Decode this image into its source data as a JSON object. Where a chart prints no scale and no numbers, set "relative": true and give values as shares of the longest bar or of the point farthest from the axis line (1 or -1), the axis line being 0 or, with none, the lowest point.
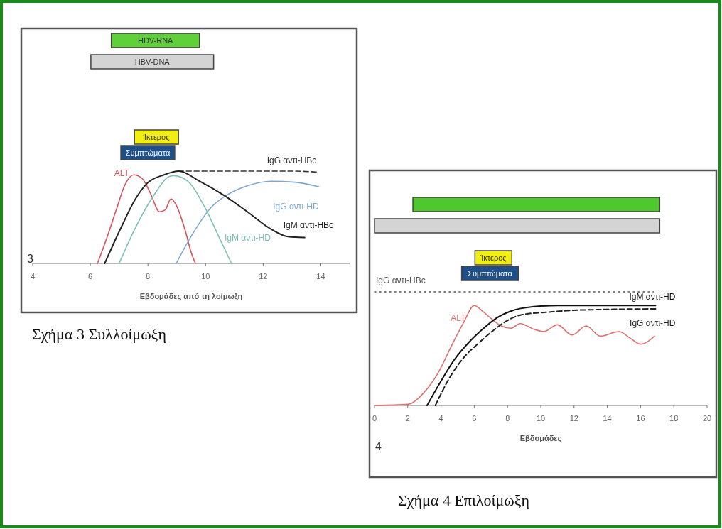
{
  "chart_data": [
    {
      "type": "line",
      "title": "Σχήμα 3  Συλλοίμωξη",
      "xlabel": "Εβδομάδες από τη λοίμωξη",
      "relative": true,
      "tick_labels": "x",
      "xlim": [
        4,
        15
      ],
      "xticks": [
        4,
        6,
        8,
        10,
        12,
        14
      ],
      "annotations": [
        "HDV-RNA",
        "HBV-DNA",
        "Ίκτερος",
        "Συμπτώματα",
        "3"
      ],
      "series": [
        {
          "name": "ALT",
          "color": "#e0505a",
          "line_style": "solid",
          "x": [
            6.25,
            6.6,
            6.9,
            7.2,
            7.5,
            7.8,
            8.1,
            8.4,
            8.6,
            8.8,
            9.0,
            9.3,
            9.5,
            9.65
          ],
          "values": [
            0,
            0.3,
            0.58,
            0.85,
            0.96,
            0.92,
            0.75,
            0.56,
            0.58,
            0.7,
            0.62,
            0.35,
            0.12,
            0
          ]
        },
        {
          "name": "IgG αντι-HBc",
          "color": "#333333",
          "line_style": "dashed",
          "x": [
            9.06,
            10,
            11,
            12,
            13,
            13.85
          ],
          "values": [
            1,
            1,
            1,
            1,
            1,
            0.99
          ]
        },
        {
          "name": "IgG αντι-HD",
          "color": "#7fa8d0",
          "line_style": "solid",
          "x": [
            8.98,
            9.55,
            10.2,
            10.79,
            11.45,
            12.28,
            13.1,
            13.93
          ],
          "values": [
            0,
            0.32,
            0.61,
            0.75,
            0.84,
            0.89,
            0.88,
            0.83
          ]
        },
        {
          "name": "IgM αντι-HBc",
          "color": "#222222",
          "line_style": "solid",
          "x": [
            6.5,
            7.07,
            7.57,
            7.98,
            8.56,
            9.06,
            9.8,
            10.63,
            11.45,
            12.28,
            12.86,
            13.44
          ],
          "values": [
            0,
            0.39,
            0.7,
            0.87,
            0.96,
            1,
            0.89,
            0.74,
            0.56,
            0.37,
            0.29,
            0.28
          ]
        },
        {
          "name": "IgM αντι-HD",
          "color": "#7cc0b8",
          "line_style": "solid",
          "x": [
            7.0,
            7.57,
            8.23,
            8.73,
            8.9,
            9.39,
            9.97,
            10.46,
            10.9
          ],
          "values": [
            0,
            0.39,
            0.75,
            0.94,
            0.95,
            0.89,
            0.61,
            0.29,
            0
          ]
        }
      ]
    },
    {
      "type": "line",
      "title": "Σχήμα 4    Επιλοίμωξη",
      "xlabel": "Εβδομάδες",
      "relative": true,
      "tick_labels": "x",
      "xlim": [
        0,
        20
      ],
      "xticks": [
        0,
        2,
        4,
        6,
        8,
        10,
        12,
        14,
        16,
        18,
        20
      ],
      "annotations": [
        "Ίκτερος",
        "Συμπτώματα",
        "4"
      ],
      "series": [
        {
          "name": "IgG αντι-HBc",
          "color": "#555555",
          "line_style": "dotted",
          "x": [
            0,
            16.8
          ],
          "values": [
            1,
            1
          ]
        },
        {
          "name": "ALT",
          "color": "#e07070",
          "line_style": "solid",
          "x": [
            0,
            2,
            2.95,
            3.8,
            4.65,
            5.36,
            6.0,
            6.49,
            7.06,
            7.63,
            8.2,
            8.76,
            9.6,
            10.18,
            11.0,
            11.88,
            12.73,
            13.58,
            14.7,
            15.4,
            16.0,
            16.84
          ],
          "values": [
            0,
            0.01,
            0.11,
            0.28,
            0.53,
            0.73,
            0.88,
            0.83,
            0.76,
            0.7,
            0.68,
            0.72,
            0.67,
            0.65,
            0.71,
            0.62,
            0.7,
            0.61,
            0.65,
            0.59,
            0.54,
            0.61
          ]
        },
        {
          "name": "IgM αντι-HD",
          "color": "#111111",
          "line_style": "solid",
          "x": [
            3.16,
            3.94,
            4.79,
            5.64,
            6.49,
            7.34,
            8.19,
            9.6,
            11.03,
            16.9
          ],
          "values": [
            0,
            0.2,
            0.4,
            0.55,
            0.67,
            0.77,
            0.83,
            0.87,
            0.88,
            0.88
          ]
        },
        {
          "name": "IgG αντι-HD",
          "color": "#222222",
          "line_style": "dashed",
          "x": [
            3.66,
            4.5,
            5.36,
            6.2,
            7.06,
            7.9,
            8.9,
            10.3,
            12.4,
            16.9
          ],
          "values": [
            0,
            0.24,
            0.42,
            0.54,
            0.65,
            0.74,
            0.8,
            0.82,
            0.84,
            0.85
          ]
        }
      ]
    }
  ]
}
